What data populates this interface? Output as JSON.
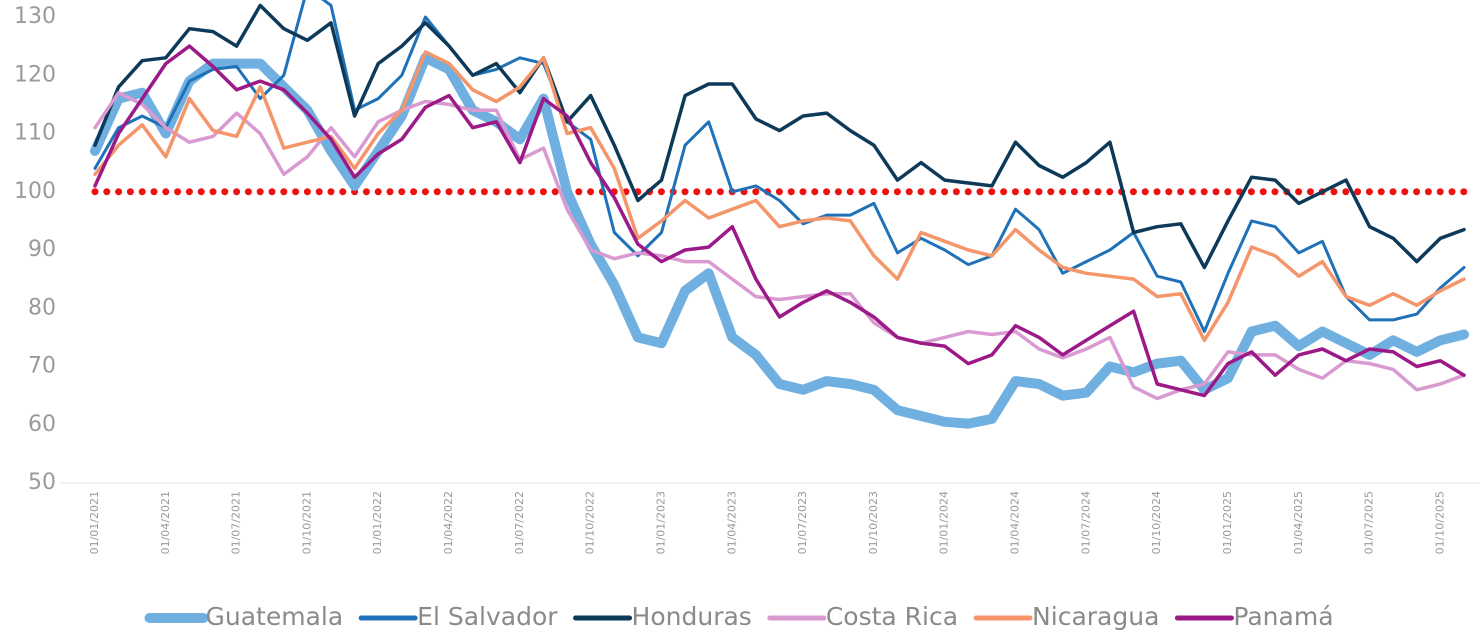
{
  "chart_data": {
    "type": "line",
    "categories": [
      "01/01/2021",
      null,
      null,
      "01/04/2021",
      null,
      null,
      "01/07/2021",
      null,
      null,
      "01/10/2021",
      null,
      null,
      "01/01/2022",
      null,
      null,
      "01/04/2022",
      null,
      null,
      "01/07/2022",
      null,
      null,
      "01/10/2022",
      null,
      null,
      "01/01/2023",
      null,
      null,
      "01/04/2023",
      null,
      null,
      "01/07/2023",
      null,
      null,
      "01/10/2023",
      null,
      null,
      "01/01/2024",
      null,
      null,
      "01/04/2024",
      null,
      null,
      "01/07/2024",
      null,
      null,
      "01/10/2024",
      null,
      null,
      "01/01/2025",
      null,
      null,
      "01/04/2025",
      null,
      null,
      "01/07/2025",
      null,
      null,
      "01/10/2025",
      null
    ],
    "ylim": [
      50,
      130
    ],
    "yticks": [
      50,
      60,
      70,
      80,
      90,
      100,
      110,
      120,
      130
    ],
    "reference_line": {
      "value": 100,
      "color": "#ee1111"
    },
    "series": [
      {
        "name": "Guatemala",
        "color": "#6fb0e0",
        "width": 10,
        "values": [
          107,
          116,
          117,
          110,
          119,
          122,
          122,
          122,
          118,
          114,
          107,
          101,
          107,
          113,
          123,
          121,
          114,
          112,
          109,
          116,
          100,
          91,
          84,
          75,
          74,
          83,
          86,
          75,
          72,
          67,
          66,
          67.5,
          67,
          66,
          62.5,
          61.5,
          60.5,
          60.2,
          61,
          67.5,
          67,
          65,
          65.5,
          70,
          69,
          70.5,
          71,
          66,
          68,
          76,
          77,
          73.5,
          76,
          74,
          72,
          74.5,
          72.5,
          74.5,
          75.5
        ]
      },
      {
        "name": "El Salvador",
        "color": "#1f72b8",
        "width": 3,
        "values": [
          104,
          111,
          113,
          111,
          119,
          121,
          121.5,
          116,
          120,
          135,
          132,
          114,
          116,
          120,
          130,
          125,
          120,
          121,
          123,
          122,
          112,
          109,
          93,
          89,
          93,
          108,
          112,
          100,
          101,
          98.5,
          94.5,
          96,
          96,
          98,
          89.5,
          92,
          90,
          87.5,
          89,
          97,
          93.5,
          86,
          88,
          90,
          93,
          85.5,
          84.5,
          76,
          86,
          95,
          94,
          89.5,
          91.5,
          82,
          78,
          78,
          79,
          83.5,
          87
        ]
      },
      {
        "name": "Honduras",
        "color": "#0e3a5a",
        "width": 3.5,
        "values": [
          108,
          118,
          122.5,
          123,
          128,
          127.5,
          125,
          132,
          128,
          126,
          129,
          113,
          122,
          125,
          129,
          125,
          120,
          122,
          117,
          123,
          112,
          116.5,
          108,
          98.5,
          102,
          116.5,
          118.5,
          118.5,
          112.5,
          110.5,
          113,
          113.5,
          110.5,
          108,
          102,
          105,
          102,
          101.5,
          101,
          108.5,
          104.5,
          102.5,
          105,
          108.5,
          93,
          94,
          94.5,
          87,
          95,
          102.5,
          102,
          98,
          100,
          102,
          94,
          92,
          88,
          92,
          93.5
        ]
      },
      {
        "name": "Costa Rica",
        "color": "#d89ad0",
        "width": 3.5,
        "values": [
          111,
          117,
          115,
          111,
          108.5,
          109.5,
          113.5,
          110,
          103,
          106,
          111,
          106,
          112,
          114,
          115.5,
          115,
          114,
          114,
          105.5,
          107.5,
          97,
          90,
          88.5,
          89.5,
          89,
          88,
          88,
          85,
          82,
          81.5,
          82,
          82.5,
          82.5,
          77.5,
          75,
          74,
          75,
          76,
          75.5,
          76,
          73,
          71.5,
          73,
          75,
          66.5,
          64.5,
          66,
          67,
          72.5,
          72,
          72,
          69.5,
          68,
          71,
          70.5,
          69.5,
          66,
          67,
          68.5
        ]
      },
      {
        "name": "Nicaragua",
        "color": "#f4956a",
        "width": 3.5,
        "values": [
          103,
          108,
          111.5,
          106,
          116,
          110.5,
          109.5,
          118,
          107.5,
          108.5,
          109.5,
          104,
          110,
          114,
          124,
          122,
          117.5,
          115.5,
          118,
          123,
          110,
          111,
          104,
          92,
          95,
          98.5,
          95.5,
          97,
          98.5,
          94,
          95,
          95.5,
          95,
          89,
          85,
          93,
          91.5,
          90,
          89,
          93.5,
          90,
          87,
          86,
          85.5,
          85,
          82,
          82.5,
          74.5,
          81,
          90.5,
          89,
          85.5,
          88,
          82,
          80.5,
          82.5,
          80.5,
          83,
          85
        ]
      },
      {
        "name": "Panamá",
        "color": "#9b1a87",
        "width": 3.5,
        "values": [
          101,
          110,
          116,
          122,
          125,
          121.5,
          117.5,
          119,
          117.5,
          113.5,
          109,
          102.5,
          106.5,
          109,
          114.5,
          116.5,
          111,
          112,
          105,
          116,
          113,
          105,
          99,
          91,
          88,
          90,
          90.5,
          94,
          85,
          78.5,
          81,
          83,
          81,
          78.5,
          75,
          74,
          73.5,
          70.5,
          72,
          77,
          75,
          72,
          74.5,
          77,
          79.5,
          67,
          66,
          65,
          70.5,
          72.5,
          68.5,
          72,
          73,
          71,
          73,
          72.5,
          70,
          71,
          68.5
        ]
      }
    ]
  }
}
